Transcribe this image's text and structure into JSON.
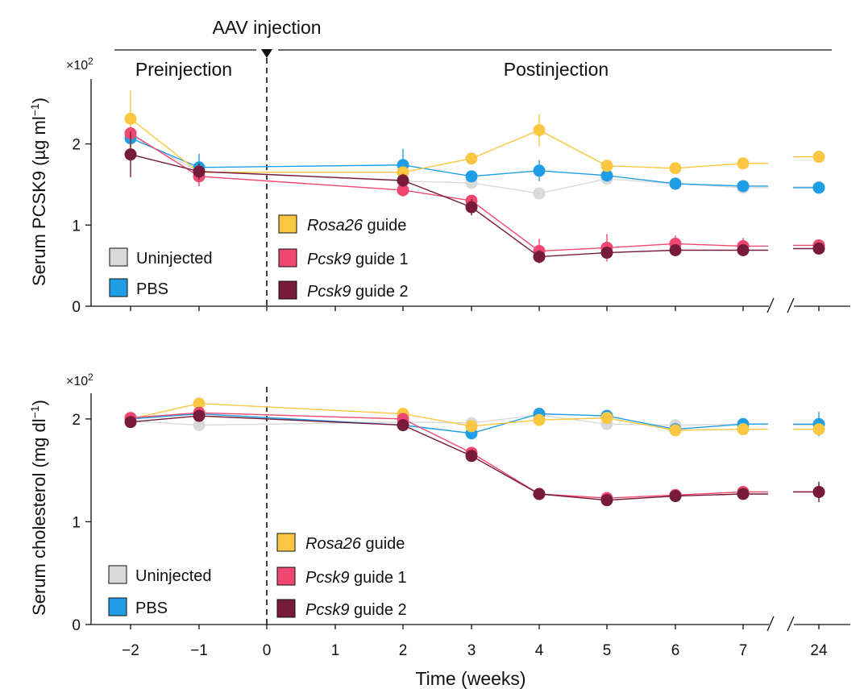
{
  "figure": {
    "annotation": "AAV injection",
    "regions": {
      "pre": "Preinjection",
      "post": "Postinjection"
    },
    "xlabel": "Time (weeks)",
    "x_ticks": [
      "−2",
      "−1",
      "0",
      "1",
      "2",
      "3",
      "4",
      "5",
      "6",
      "7",
      "24"
    ],
    "multiplier": "×10",
    "multiplier_exp": "2"
  },
  "chart_data": [
    {
      "type": "line",
      "id": "pcsk9",
      "ylabel": "Serum PCSK9 (µg ml",
      "ylabel_sup": "−1",
      "ylabel_end": ")",
      "yunit": "×10^2 µg ml^-1",
      "ylim": [
        0,
        2.8
      ],
      "y_ticks": [
        0,
        1,
        2
      ],
      "series": [
        {
          "name": "Uninjected",
          "color": "#d9d9d9",
          "x": [
            -2,
            -1,
            2,
            3,
            4,
            5,
            6,
            7,
            24
          ],
          "values": [
            2.1,
            1.66,
            1.54,
            1.52,
            1.39,
            1.57,
            1.51,
            1.46,
            1.47
          ],
          "err": [
            0.05,
            0.1,
            0.04,
            0.04,
            0.05,
            0.04,
            0.04,
            0.04,
            0.03
          ]
        },
        {
          "name": "PBS",
          "color": "#1f9ee6",
          "x": [
            -2,
            -1,
            2,
            3,
            4,
            5,
            6,
            7,
            24
          ],
          "values": [
            2.07,
            1.71,
            1.74,
            1.6,
            1.67,
            1.61,
            1.51,
            1.48,
            1.46
          ],
          "err": [
            0.06,
            0.17,
            0.2,
            0.06,
            0.13,
            0.07,
            0.05,
            0.04,
            0.03
          ]
        },
        {
          "name": "Rosa26 guide",
          "name_italic": "Rosa26",
          "name_rest": " guide",
          "color": "#f9c742",
          "x": [
            -2,
            -1,
            2,
            3,
            4,
            5,
            6,
            7,
            24
          ],
          "values": [
            2.31,
            1.65,
            1.65,
            1.82,
            2.17,
            1.73,
            1.7,
            1.76,
            1.84
          ],
          "err": [
            0.35,
            0.08,
            0.06,
            0.06,
            0.2,
            0.06,
            0.05,
            0.05,
            0.04
          ]
        },
        {
          "name": "Pcsk9 guide 1",
          "name_italic": "Pcsk9",
          "name_rest": " guide 1",
          "color": "#ee4870",
          "x": [
            -2,
            -1,
            2,
            3,
            4,
            5,
            6,
            7,
            24
          ],
          "values": [
            2.13,
            1.6,
            1.43,
            1.3,
            0.68,
            0.72,
            0.77,
            0.74,
            0.75
          ],
          "err": [
            0.08,
            0.12,
            0.08,
            0.07,
            0.15,
            0.17,
            0.1,
            0.1,
            0.06
          ]
        },
        {
          "name": "Pcsk9 guide 2",
          "name_italic": "Pcsk9",
          "name_rest": " guide 2",
          "color": "#771b3a",
          "x": [
            -2,
            -1,
            2,
            3,
            4,
            5,
            6,
            7,
            24
          ],
          "values": [
            1.87,
            1.66,
            1.55,
            1.22,
            0.61,
            0.66,
            0.69,
            0.69,
            0.71
          ],
          "err": [
            0.28,
            0.1,
            0.08,
            0.1,
            0.08,
            0.06,
            0.06,
            0.05,
            0.04
          ]
        }
      ],
      "left_legend": [
        "Uninjected",
        "PBS"
      ],
      "right_legend": [
        "Rosa26 guide",
        "Pcsk9 guide 1",
        "Pcsk9 guide 2"
      ]
    },
    {
      "type": "line",
      "id": "cholesterol",
      "ylabel": "Serum cholesterol (mg dl",
      "ylabel_sup": "−1",
      "ylabel_end": ")",
      "yunit": "×10^2 mg dl^-1",
      "ylim": [
        0,
        2.25
      ],
      "y_ticks": [
        0,
        1,
        2
      ],
      "series": [
        {
          "name": "Uninjected",
          "color": "#d9d9d9",
          "x": [
            -2,
            -1,
            2,
            3,
            4,
            5,
            6,
            7,
            24
          ],
          "values": [
            1.98,
            1.94,
            1.97,
            1.96,
            2.04,
            1.95,
            1.94,
            1.95,
            1.94
          ],
          "err": [
            0.03,
            0.03,
            0.03,
            0.03,
            0.03,
            0.03,
            0.04,
            0.03,
            0.03
          ]
        },
        {
          "name": "PBS",
          "color": "#1f9ee6",
          "x": [
            -2,
            -1,
            2,
            3,
            4,
            5,
            6,
            7,
            24
          ],
          "values": [
            2.0,
            2.05,
            1.94,
            1.86,
            2.05,
            2.03,
            1.9,
            1.95,
            1.95
          ],
          "err": [
            0.03,
            0.03,
            0.03,
            0.05,
            0.03,
            0.03,
            0.05,
            0.05,
            0.12
          ]
        },
        {
          "name": "Rosa26 guide",
          "name_italic": "Rosa26",
          "name_rest": " guide",
          "color": "#f9c742",
          "x": [
            -2,
            -1,
            2,
            3,
            4,
            5,
            6,
            7,
            24
          ],
          "values": [
            2.0,
            2.15,
            2.05,
            1.93,
            1.99,
            2.01,
            1.89,
            1.9,
            1.9
          ],
          "err": [
            0.03,
            0.03,
            0.03,
            0.03,
            0.03,
            0.03,
            0.03,
            0.03,
            0.04
          ]
        },
        {
          "name": "Pcsk9 guide 1",
          "name_italic": "Pcsk9",
          "name_rest": " guide 1",
          "color": "#ee4870",
          "x": [
            -2,
            -1,
            2,
            3,
            4,
            5,
            6,
            7,
            24
          ],
          "values": [
            2.01,
            2.06,
            2.0,
            1.67,
            1.27,
            1.23,
            1.26,
            1.29,
            1.29
          ],
          "err": [
            0.03,
            0.03,
            0.03,
            0.04,
            0.05,
            0.04,
            0.04,
            0.04,
            0.04
          ]
        },
        {
          "name": "Pcsk9 guide 2",
          "name_italic": "Pcsk9",
          "name_rest": " guide 2",
          "color": "#771b3a",
          "x": [
            -2,
            -1,
            2,
            3,
            4,
            5,
            6,
            7,
            24
          ],
          "values": [
            1.97,
            2.03,
            1.94,
            1.64,
            1.27,
            1.21,
            1.25,
            1.27,
            1.29
          ],
          "err": [
            0.03,
            0.03,
            0.03,
            0.04,
            0.05,
            0.04,
            0.04,
            0.04,
            0.1
          ]
        }
      ],
      "left_legend": [
        "Uninjected",
        "PBS"
      ],
      "right_legend": [
        "Rosa26 guide",
        "Pcsk9 guide 1",
        "Pcsk9 guide 2"
      ]
    }
  ]
}
